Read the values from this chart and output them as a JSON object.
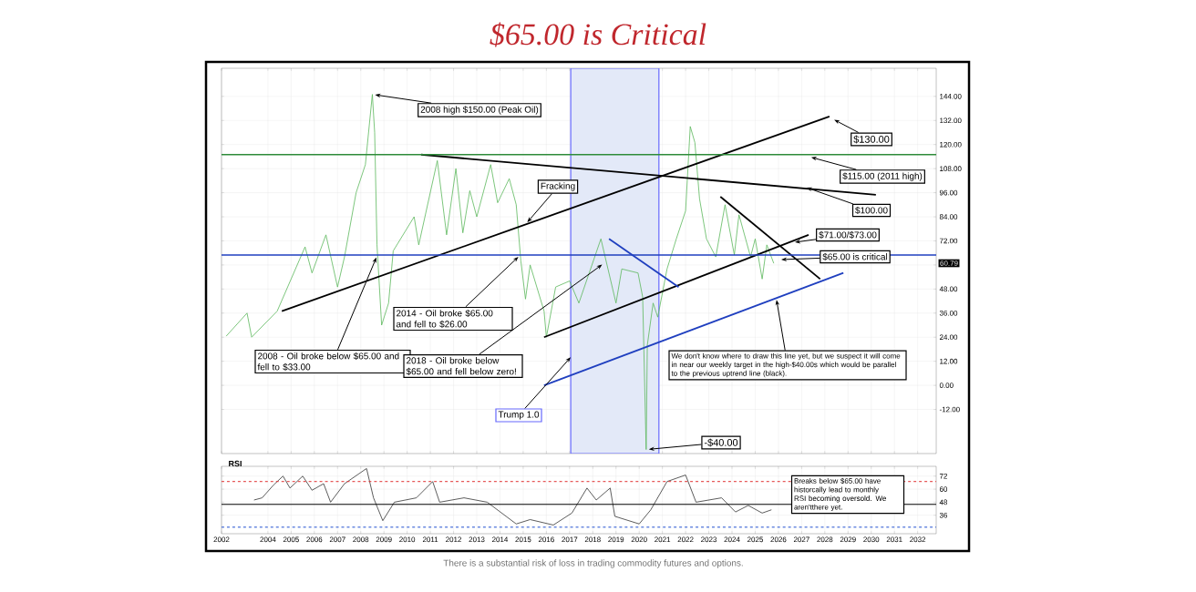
{
  "chart_data": [
    {
      "type": "line",
      "title": "$65.00 is Critical",
      "xlim": [
        2002,
        2032.8
      ],
      "ylim": [
        -34,
        158
      ],
      "xticks": [
        2002,
        2004,
        2005,
        2006,
        2007,
        2008,
        2009,
        2010,
        2011,
        2012,
        2013,
        2014,
        2015,
        2016,
        2017,
        2018,
        2019,
        2020,
        2021,
        2022,
        2023,
        2024,
        2025,
        2026,
        2027,
        2028,
        2029,
        2030,
        2031,
        2032
      ],
      "yticks": [
        {
          "value": -12,
          "label": "-12.00"
        },
        {
          "value": 0,
          "label": "0.00"
        },
        {
          "value": 12,
          "label": "12.00"
        },
        {
          "value": 24,
          "label": "24.00"
        },
        {
          "value": 36,
          "label": "36.00"
        },
        {
          "value": 48,
          "label": "48.00"
        },
        {
          "value": 60,
          "label": null
        },
        {
          "value": 72,
          "label": "72.00"
        },
        {
          "value": 84,
          "label": "84.00"
        },
        {
          "value": 96,
          "label": "96.00"
        },
        {
          "value": 108,
          "label": "108.00"
        },
        {
          "value": 120,
          "label": "120.00"
        },
        {
          "value": 132,
          "label": "132.00"
        },
        {
          "value": 144,
          "label": "144.00"
        }
      ],
      "tick_labels": "y",
      "grid": true,
      "series": [
        {
          "color": "#5cb85c",
          "x": [
            2002.2,
            2003.1,
            2003.3,
            2004.4,
            2005.6,
            2005.9,
            2006.5,
            2007.0,
            2007.3,
            2007.8,
            2008.2,
            2008.5,
            2008.6,
            2008.7,
            2008.9,
            2009.2,
            2009.4,
            2010.3,
            2010.5,
            2011.3,
            2011.7,
            2012.1,
            2012.4,
            2012.7,
            2013.0,
            2013.6,
            2013.9,
            2014.4,
            2014.7,
            2014.9,
            2015.1,
            2015.3,
            2015.9,
            2016.0,
            2016.4,
            2017.0,
            2017.4,
            2018.35,
            2019.0,
            2019.25,
            2019.95,
            2020.15,
            2020.3,
            2020.35,
            2020.6,
            2020.8,
            2021.2,
            2021.6,
            2022.0,
            2022.2,
            2022.4,
            2022.6,
            2022.9,
            2023.3,
            2023.7,
            2024.1,
            2024.3,
            2024.8,
            2025.0,
            2025.3,
            2025.5,
            2025.8
          ],
          "values": [
            24.5,
            36,
            24,
            37,
            69,
            56,
            75,
            49,
            64,
            96,
            110,
            145,
            126,
            70,
            30,
            41,
            67,
            84,
            70,
            112,
            75,
            108,
            76,
            97,
            84,
            110,
            91,
            103,
            90,
            62,
            43,
            60,
            37,
            24,
            49,
            52,
            41,
            73,
            41,
            58,
            56,
            44,
            -32,
            20,
            41,
            34,
            58,
            73,
            87,
            129,
            121,
            93,
            73,
            64,
            90,
            65,
            85,
            64,
            73,
            53,
            70,
            60.79
          ]
        },
        {
          "type": "line",
          "color": "#000000",
          "x": [
            2004.6,
            2028.2
          ],
          "values": [
            37,
            134
          ]
        },
        {
          "type": "line",
          "color": "#000000",
          "x": [
            2010.6,
            2030.2
          ],
          "values": [
            115,
            95
          ]
        },
        {
          "type": "line",
          "color": "#000000",
          "x": [
            2023.5,
            2027.8
          ],
          "values": [
            94,
            53
          ]
        },
        {
          "type": "line",
          "color": "#000000",
          "x": [
            2015.9,
            2027.3
          ],
          "values": [
            24,
            75
          ]
        },
        {
          "type": "line",
          "color": "#1f3fbf",
          "x": [
            2015.9,
            2028.8
          ],
          "values": [
            0,
            56
          ]
        },
        {
          "type": "line",
          "color": "#1f3fbf",
          "x": [
            2018.7,
            2021.7
          ],
          "values": [
            73,
            49
          ]
        }
      ],
      "ref_lines": [
        {
          "axis": "y",
          "value": 115,
          "color": "#2e8b3a"
        },
        {
          "axis": "y",
          "value": 65,
          "color": "#1f3fbf"
        }
      ],
      "bands": [
        {
          "axis": "x",
          "from": 2017.05,
          "to": 2020.85,
          "label": "Trump 1.0",
          "color": "#e3e9f8"
        }
      ],
      "annotations": [
        {
          "text": "2008 high $150.00 (Peak Oil)",
          "x": 2008.5,
          "y": 145
        },
        {
          "text": "Fracking",
          "x": 2015.1,
          "y": 80.2
        },
        {
          "text": "2008 - Oil broke below $65.00 and fell to $33.00",
          "x": 2008.72,
          "y": 65
        },
        {
          "text": "2014 - Oil broke $65.00 and fell to $26.00",
          "x": 2014.88,
          "y": 65
        },
        {
          "text": "2018 - Oil broke below $65.00 and fell below zero!",
          "x": 2018.5,
          "y": 61
        },
        {
          "text": "-$40.00",
          "x": 2020.3,
          "y": -32
        },
        {
          "text": "$130.00",
          "x": 2028.3,
          "y": 133
        },
        {
          "text": "$115.00 (2011 high)",
          "x": 2027.3,
          "y": 114
        },
        {
          "text": "$100.00",
          "x": 2027.1,
          "y": 99
        },
        "$71.00/$73.00",
        "$65.00 is critical",
        {
          "text": "We don't know where to draw this line yet, but we suspect it will come in near our weekly target in the high-$40.00s which would be parallel to the previous uptrend line (black).",
          "x": 2025.9,
          "y": 44
        },
        "60.79"
      ]
    },
    {
      "type": "line",
      "title": "RSI",
      "xlim": [
        2002,
        2032.8
      ],
      "ylim": [
        19,
        81
      ],
      "xticks": [
        2002,
        2004,
        2005,
        2006,
        2007,
        2008,
        2009,
        2010,
        2011,
        2012,
        2013,
        2014,
        2015,
        2016,
        2017,
        2018,
        2019,
        2020,
        2021,
        2022,
        2023,
        2024,
        2025,
        2026,
        2027,
        2028,
        2029,
        2030,
        2031,
        2032
      ],
      "yticks": [
        36,
        48,
        60,
        72
      ],
      "grid": true,
      "series": [
        {
          "color": "#333333",
          "x": [
            2003.4,
            2003.75,
            2004.25,
            2004.65,
            2004.95,
            2005.5,
            2005.9,
            2006.4,
            2006.7,
            2007.3,
            2008.25,
            2008.55,
            2008.95,
            2009.45,
            2010.4,
            2011.1,
            2011.4,
            2012.45,
            2013.45,
            2014.7,
            2015.3,
            2016.3,
            2017.1,
            2017.75,
            2018.15,
            2018.75,
            2018.95,
            2020.0,
            2020.5,
            2021.2,
            2022.0,
            2022.45,
            2023.55,
            2024.15,
            2024.7,
            2025.3,
            2025.7
          ],
          "values": [
            50,
            52,
            64,
            72,
            61,
            72,
            59,
            65,
            48,
            65,
            79,
            52,
            31,
            48,
            52,
            67,
            48,
            52,
            48,
            28,
            32,
            27,
            38,
            61,
            50,
            61,
            35,
            28,
            41,
            67,
            73,
            48,
            52,
            39,
            45,
            38,
            41
          ]
        }
      ],
      "ref_lines": [
        {
          "axis": "y",
          "value": 67,
          "color": "#e03030",
          "line_style": "dashed"
        },
        {
          "axis": "y",
          "value": 46,
          "color": "#000000"
        },
        {
          "axis": "y",
          "value": 25,
          "color": "#2050d0",
          "line_style": "dashed"
        }
      ],
      "annotations": [
        "Breaks below $65.00 have historcally lead to monthly RSI becoming oversold. We aren'tthere yet.",
        "There is a substantial risk of loss in trading commodity futures and options."
      ]
    }
  ]
}
